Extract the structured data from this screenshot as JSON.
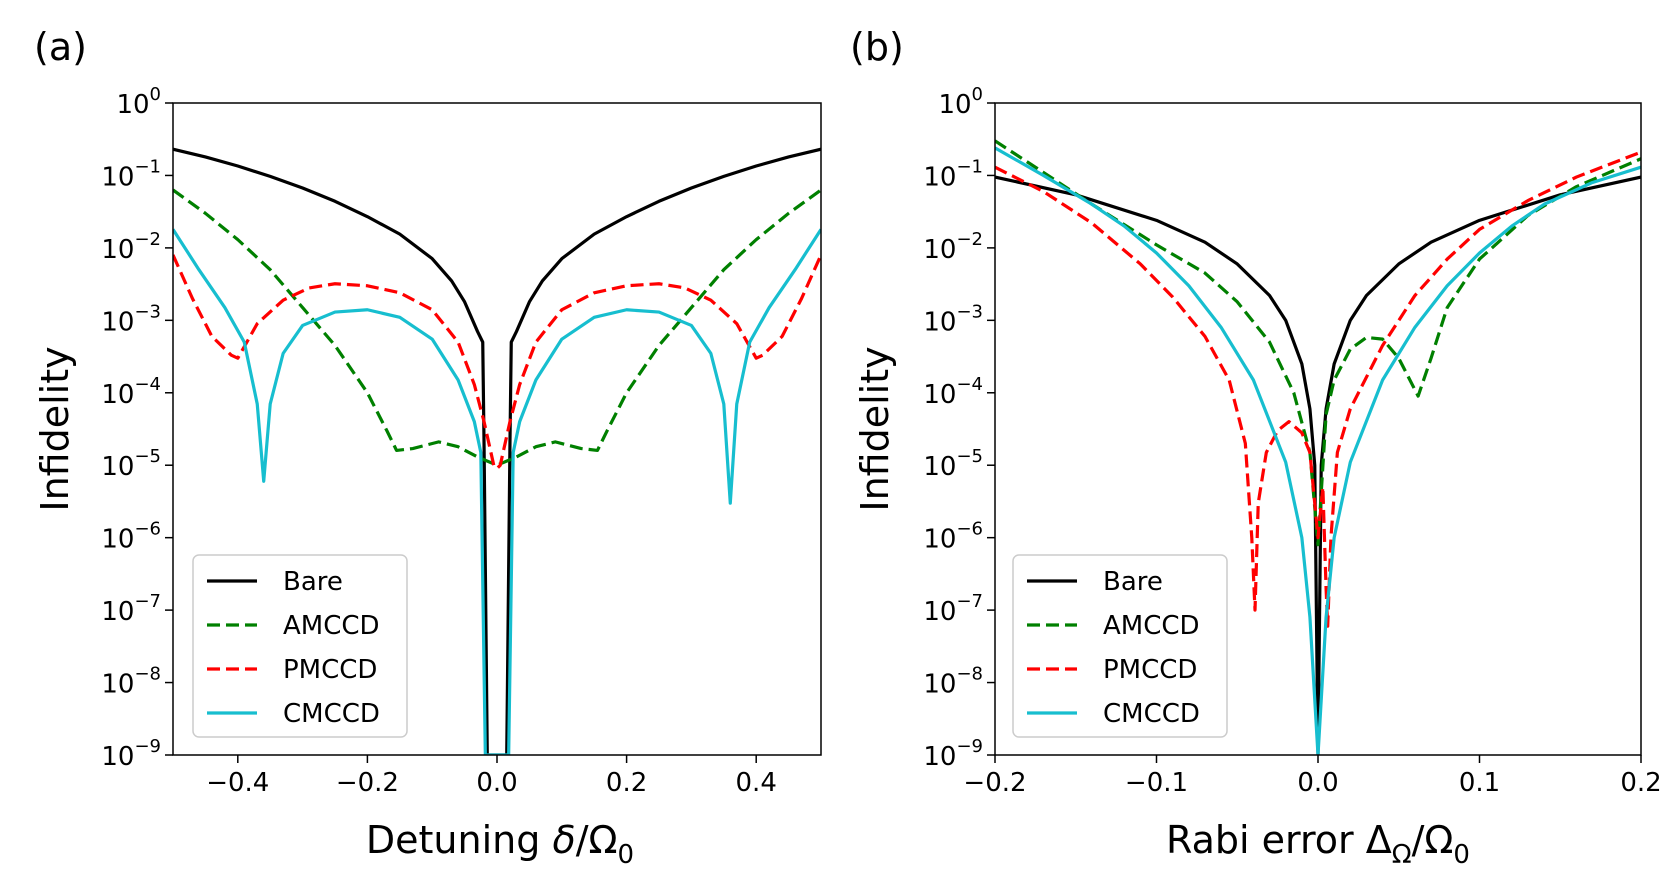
{
  "chart_data": [
    {
      "type": "line",
      "panel_label": "(a)",
      "xlabel": "Detuning δ/Ω0",
      "xlabel_parts": {
        "main": "Detuning ",
        "italic": "δ",
        "slash": "/Ω",
        "sub": "0"
      },
      "ylabel": "Infidelity",
      "yscale": "log",
      "xlim": [
        -0.5,
        0.5
      ],
      "ylim": [
        1e-09,
        1
      ],
      "x_ticks": [
        -0.4,
        -0.2,
        0.0,
        0.2,
        0.4
      ],
      "x_tick_labels": [
        "−0.4",
        "−0.2",
        "0.0",
        "0.2",
        "0.4"
      ],
      "y_tick_exponents": [
        "0",
        "−1",
        "−2",
        "−3",
        "−4",
        "−5",
        "−6",
        "−7",
        "−8",
        "−9"
      ],
      "y_tick_base": "10",
      "legend": {
        "position": "lower-left",
        "entries": [
          "Bare",
          "AMCCD",
          "PMCCD",
          "CMCCD"
        ]
      },
      "series": [
        {
          "name": "Bare",
          "style": "solid",
          "color": "#000000",
          "points": [
            [
              -0.5,
              0.23
            ],
            [
              -0.45,
              0.18
            ],
            [
              -0.4,
              0.135
            ],
            [
              -0.35,
              0.097
            ],
            [
              -0.3,
              0.067
            ],
            [
              -0.25,
              0.044
            ],
            [
              -0.2,
              0.027
            ],
            [
              -0.15,
              0.0155
            ],
            [
              -0.1,
              0.0071
            ],
            [
              -0.07,
              0.0035
            ],
            [
              -0.05,
              0.0018
            ],
            [
              -0.03,
              0.0007
            ],
            [
              -0.022,
              0.0005
            ],
            [
              -0.02,
              2e-05
            ],
            [
              -0.015,
              1e-09
            ],
            [
              0.015,
              1e-09
            ],
            [
              0.02,
              2e-05
            ],
            [
              0.022,
              0.0005
            ],
            [
              0.03,
              0.0007
            ],
            [
              0.05,
              0.0018
            ],
            [
              0.07,
              0.0035
            ],
            [
              0.1,
              0.0071
            ],
            [
              0.15,
              0.0155
            ],
            [
              0.2,
              0.027
            ],
            [
              0.25,
              0.044
            ],
            [
              0.3,
              0.067
            ],
            [
              0.35,
              0.097
            ],
            [
              0.4,
              0.135
            ],
            [
              0.45,
              0.18
            ],
            [
              0.5,
              0.23
            ]
          ]
        },
        {
          "name": "AMCCD",
          "style": "dashed",
          "color": "#008000",
          "points": [
            [
              -0.5,
              0.063
            ],
            [
              -0.45,
              0.03
            ],
            [
              -0.4,
              0.013
            ],
            [
              -0.35,
              0.005
            ],
            [
              -0.3,
              0.0015
            ],
            [
              -0.25,
              0.00045
            ],
            [
              -0.2,
              0.0001
            ],
            [
              -0.17,
              3e-05
            ],
            [
              -0.155,
              1.6e-05
            ],
            [
              -0.13,
              1.7e-05
            ],
            [
              -0.09,
              2.1e-05
            ],
            [
              -0.06,
              1.8e-05
            ],
            [
              -0.03,
              1.3e-05
            ],
            [
              0.0,
              1e-05
            ],
            [
              0.03,
              1.3e-05
            ],
            [
              0.06,
              1.8e-05
            ],
            [
              0.09,
              2.1e-05
            ],
            [
              0.13,
              1.7e-05
            ],
            [
              0.155,
              1.6e-05
            ],
            [
              0.17,
              3e-05
            ],
            [
              0.2,
              0.0001
            ],
            [
              0.25,
              0.00045
            ],
            [
              0.3,
              0.0015
            ],
            [
              0.35,
              0.005
            ],
            [
              0.4,
              0.013
            ],
            [
              0.45,
              0.03
            ],
            [
              0.5,
              0.063
            ]
          ]
        },
        {
          "name": "PMCCD",
          "style": "dashed",
          "color": "#ff0000",
          "points": [
            [
              -0.5,
              0.008
            ],
            [
              -0.47,
              0.002
            ],
            [
              -0.44,
              0.0006
            ],
            [
              -0.41,
              0.00033
            ],
            [
              -0.4,
              0.0003
            ],
            [
              -0.37,
              0.0009
            ],
            [
              -0.33,
              0.0019
            ],
            [
              -0.29,
              0.0028
            ],
            [
              -0.25,
              0.0032
            ],
            [
              -0.2,
              0.003
            ],
            [
              -0.15,
              0.0024
            ],
            [
              -0.1,
              0.0014
            ],
            [
              -0.06,
              0.0005
            ],
            [
              -0.035,
              0.00013
            ],
            [
              -0.02,
              4e-05
            ],
            [
              -0.005,
              1e-05
            ],
            [
              0.0,
              9e-06
            ],
            [
              0.005,
              1e-05
            ],
            [
              0.02,
              4e-05
            ],
            [
              0.035,
              0.00013
            ],
            [
              0.06,
              0.0005
            ],
            [
              0.1,
              0.0014
            ],
            [
              0.15,
              0.0024
            ],
            [
              0.2,
              0.003
            ],
            [
              0.25,
              0.0032
            ],
            [
              0.29,
              0.0028
            ],
            [
              0.33,
              0.0019
            ],
            [
              0.37,
              0.0009
            ],
            [
              0.4,
              0.0003
            ],
            [
              0.41,
              0.00033
            ],
            [
              0.44,
              0.0006
            ],
            [
              0.47,
              0.002
            ],
            [
              0.5,
              0.008
            ]
          ]
        },
        {
          "name": "CMCCD",
          "style": "solid",
          "color": "#17becf",
          "points": [
            [
              -0.5,
              0.018
            ],
            [
              -0.46,
              0.005
            ],
            [
              -0.42,
              0.0015
            ],
            [
              -0.39,
              0.0005
            ],
            [
              -0.37,
              7e-05
            ],
            [
              -0.36,
              6e-06
            ],
            [
              -0.35,
              7e-05
            ],
            [
              -0.33,
              0.00035
            ],
            [
              -0.3,
              0.00085
            ],
            [
              -0.25,
              0.0013
            ],
            [
              -0.2,
              0.0014
            ],
            [
              -0.15,
              0.0011
            ],
            [
              -0.1,
              0.00055
            ],
            [
              -0.06,
              0.00015
            ],
            [
              -0.035,
              4e-05
            ],
            [
              -0.025,
              1.5e-05
            ],
            [
              -0.018,
              1e-09
            ],
            [
              0.018,
              1e-09
            ],
            [
              0.025,
              1.5e-05
            ],
            [
              0.035,
              4e-05
            ],
            [
              0.06,
              0.00015
            ],
            [
              0.1,
              0.00055
            ],
            [
              0.15,
              0.0011
            ],
            [
              0.2,
              0.0014
            ],
            [
              0.25,
              0.0013
            ],
            [
              0.3,
              0.00085
            ],
            [
              0.33,
              0.00035
            ],
            [
              0.35,
              7e-05
            ],
            [
              0.36,
              3e-06
            ],
            [
              0.37,
              7e-05
            ],
            [
              0.39,
              0.0005
            ],
            [
              0.42,
              0.0015
            ],
            [
              0.46,
              0.005
            ],
            [
              0.5,
              0.018
            ]
          ]
        }
      ]
    },
    {
      "type": "line",
      "panel_label": "(b)",
      "xlabel": "Rabi error ΔΩ/Ω0",
      "xlabel_parts": {
        "main": "Rabi error Δ",
        "sub1": "Ω",
        "slash": "/Ω",
        "sub": "0"
      },
      "ylabel": "Infidelity",
      "yscale": "log",
      "xlim": [
        -0.2,
        0.2
      ],
      "ylim": [
        1e-09,
        1
      ],
      "x_ticks": [
        -0.2,
        -0.1,
        0.0,
        0.1,
        0.2
      ],
      "x_tick_labels": [
        "−0.2",
        "−0.1",
        "0.0",
        "0.1",
        "0.2"
      ],
      "y_tick_exponents": [
        "0",
        "−1",
        "−2",
        "−3",
        "−4",
        "−5",
        "−6",
        "−7",
        "−8",
        "−9"
      ],
      "y_tick_base": "10",
      "legend": {
        "position": "lower-left",
        "entries": [
          "Bare",
          "AMCCD",
          "PMCCD",
          "CMCCD"
        ]
      },
      "series": [
        {
          "name": "Bare",
          "style": "solid",
          "color": "#000000",
          "points": [
            [
              -0.2,
              0.095
            ],
            [
              -0.15,
              0.054
            ],
            [
              -0.1,
              0.024
            ],
            [
              -0.07,
              0.012
            ],
            [
              -0.05,
              0.006
            ],
            [
              -0.03,
              0.0022
            ],
            [
              -0.02,
              0.001
            ],
            [
              -0.01,
              0.00025
            ],
            [
              -0.005,
              6e-05
            ],
            [
              -0.002,
              1e-05
            ],
            [
              0.0,
              1e-09
            ],
            [
              0.002,
              1e-05
            ],
            [
              0.005,
              6e-05
            ],
            [
              0.01,
              0.00025
            ],
            [
              0.02,
              0.001
            ],
            [
              0.03,
              0.0022
            ],
            [
              0.05,
              0.006
            ],
            [
              0.07,
              0.012
            ],
            [
              0.1,
              0.024
            ],
            [
              0.15,
              0.054
            ],
            [
              0.2,
              0.095
            ]
          ]
        },
        {
          "name": "AMCCD",
          "style": "dashed",
          "color": "#008000",
          "points": [
            [
              -0.2,
              0.3
            ],
            [
              -0.17,
              0.11
            ],
            [
              -0.14,
              0.04
            ],
            [
              -0.1,
              0.011
            ],
            [
              -0.07,
              0.0045
            ],
            [
              -0.05,
              0.0018
            ],
            [
              -0.03,
              0.0005
            ],
            [
              -0.015,
              0.0001
            ],
            [
              -0.005,
              1.5e-05
            ],
            [
              0.0,
              8e-07
            ],
            [
              0.005,
              5e-05
            ],
            [
              0.01,
              0.00015
            ],
            [
              0.02,
              0.0004
            ],
            [
              0.03,
              0.00058
            ],
            [
              0.04,
              0.00055
            ],
            [
              0.05,
              0.0003
            ],
            [
              0.062,
              9e-05
            ],
            [
              0.07,
              0.0003
            ],
            [
              0.08,
              0.0015
            ],
            [
              0.1,
              0.007
            ],
            [
              0.13,
              0.028
            ],
            [
              0.16,
              0.07
            ],
            [
              0.2,
              0.17
            ]
          ]
        },
        {
          "name": "PMCCD",
          "style": "dashed",
          "color": "#ff0000",
          "points": [
            [
              -0.2,
              0.13
            ],
            [
              -0.17,
              0.06
            ],
            [
              -0.14,
              0.022
            ],
            [
              -0.11,
              0.006
            ],
            [
              -0.09,
              0.0021
            ],
            [
              -0.07,
              0.0006
            ],
            [
              -0.055,
              0.00015
            ],
            [
              -0.045,
              2e-05
            ],
            [
              -0.041,
              1e-06
            ],
            [
              -0.039,
              1e-07
            ],
            [
              -0.037,
              3e-06
            ],
            [
              -0.032,
              1.5e-05
            ],
            [
              -0.025,
              3e-05
            ],
            [
              -0.018,
              4e-05
            ],
            [
              -0.01,
              2.8e-05
            ],
            [
              -0.005,
              1.5e-05
            ],
            [
              0.0,
              1e-06
            ],
            [
              0.003,
              5e-06
            ],
            [
              0.005,
              2e-07
            ],
            [
              0.006,
              6e-08
            ],
            [
              0.008,
              1e-06
            ],
            [
              0.012,
              1.5e-05
            ],
            [
              0.02,
              6e-05
            ],
            [
              0.04,
              0.00045
            ],
            [
              0.06,
              0.0022
            ],
            [
              0.08,
              0.007
            ],
            [
              0.1,
              0.018
            ],
            [
              0.13,
              0.045
            ],
            [
              0.16,
              0.095
            ],
            [
              0.2,
              0.21
            ]
          ]
        },
        {
          "name": "CMCCD",
          "style": "solid",
          "color": "#17becf",
          "points": [
            [
              -0.2,
              0.24
            ],
            [
              -0.17,
              0.1
            ],
            [
              -0.14,
              0.04
            ],
            [
              -0.12,
              0.02
            ],
            [
              -0.1,
              0.0085
            ],
            [
              -0.08,
              0.003
            ],
            [
              -0.06,
              0.0008
            ],
            [
              -0.04,
              0.00015
            ],
            [
              -0.02,
              1.1e-05
            ],
            [
              -0.01,
              1e-06
            ],
            [
              -0.005,
              8e-08
            ],
            [
              0.0,
              1e-09
            ],
            [
              0.005,
              8e-08
            ],
            [
              0.01,
              1e-06
            ],
            [
              0.02,
              1.1e-05
            ],
            [
              0.04,
              0.00015
            ],
            [
              0.06,
              0.0008
            ],
            [
              0.08,
              0.003
            ],
            [
              0.1,
              0.0085
            ],
            [
              0.12,
              0.02
            ],
            [
              0.14,
              0.04
            ],
            [
              0.17,
              0.08
            ],
            [
              0.2,
              0.13
            ]
          ]
        }
      ]
    }
  ]
}
